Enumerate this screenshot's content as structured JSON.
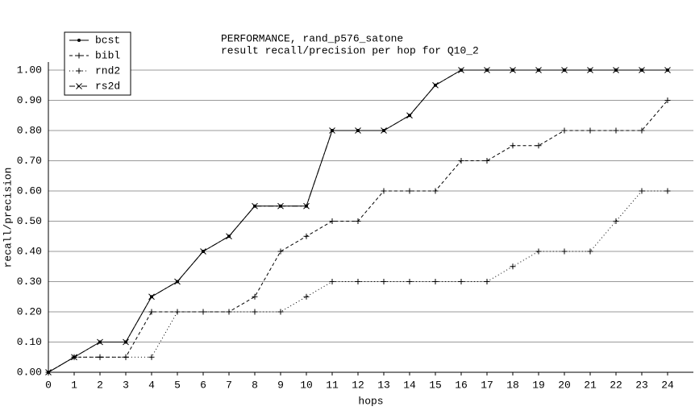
{
  "chart_data": {
    "type": "line",
    "title": "PERFORMANCE, rand_p576_satone",
    "subtitle": "result recall/precision per hop for Q10_2",
    "x_label": "hops",
    "y_label": "recall/precision",
    "x": [
      0,
      1,
      2,
      3,
      4,
      5,
      6,
      7,
      8,
      9,
      10,
      11,
      12,
      13,
      14,
      15,
      16,
      17,
      18,
      19,
      20,
      21,
      22,
      23,
      24
    ],
    "series": [
      {
        "name": "bcst",
        "color": "#000000",
        "values": [
          0,
          0.05,
          0.1,
          0.1,
          0.25,
          0.3,
          0.4,
          0.45,
          0.55,
          0.55,
          0.55,
          0.8,
          0.8,
          0.8,
          0.85,
          0.95,
          1,
          1,
          1,
          1,
          1,
          1,
          1,
          1,
          1
        ]
      },
      {
        "name": "bibl",
        "color": "#000000",
        "values": [
          0,
          0.05,
          0.05,
          0.05,
          0.2,
          0.2,
          0.2,
          0.2,
          0.25,
          0.4,
          0.45,
          0.5,
          0.5,
          0.6,
          0.6,
          0.6,
          0.7,
          0.7,
          0.75,
          0.75,
          0.8,
          0.8,
          0.8,
          0.8,
          0.9
        ]
      },
      {
        "name": "rnd2",
        "color": "#000000",
        "values": [
          0,
          0.05,
          0.05,
          0.05,
          0.05,
          0.2,
          0.2,
          0.2,
          0.2,
          0.2,
          0.25,
          0.3,
          0.3,
          0.3,
          0.3,
          0.3,
          0.3,
          0.3,
          0.35,
          0.4,
          0.4,
          0.4,
          0.5,
          0.6,
          0.6
        ]
      },
      {
        "name": "rs2d",
        "color": "#000000",
        "values": [
          0,
          0.05,
          0.1,
          0.1,
          0.25,
          0.3,
          0.4,
          0.45,
          0.55,
          0.55,
          0.55,
          0.8,
          0.8,
          0.8,
          0.85,
          0.95,
          1,
          1,
          1,
          1,
          1,
          1,
          1,
          1,
          1
        ]
      }
    ],
    "xlim": [
      0,
      25
    ],
    "xticks": [
      0,
      1,
      2,
      3,
      4,
      5,
      6,
      7,
      8,
      9,
      10,
      11,
      12,
      13,
      14,
      15,
      16,
      17,
      18,
      19,
      20,
      21,
      22,
      23,
      24
    ],
    "ylim": [
      0,
      1
    ],
    "yticks": [
      {
        "value": 0,
        "label": "0.00"
      },
      {
        "value": 0.1,
        "label": "0.10"
      },
      {
        "value": 0.2,
        "label": "0.20"
      },
      {
        "value": 0.3,
        "label": "0.30"
      },
      {
        "value": 0.4,
        "label": "0.40"
      },
      {
        "value": 0.5,
        "label": "0.50"
      },
      {
        "value": 0.6,
        "label": "0.60"
      },
      {
        "value": 0.7,
        "label": "0.70"
      },
      {
        "value": 0.8,
        "label": "0.80"
      },
      {
        "value": 0.9,
        "label": "0.90"
      },
      {
        "value": 1,
        "label": "1.00"
      }
    ],
    "grid": true,
    "legend": "upper-left"
  }
}
